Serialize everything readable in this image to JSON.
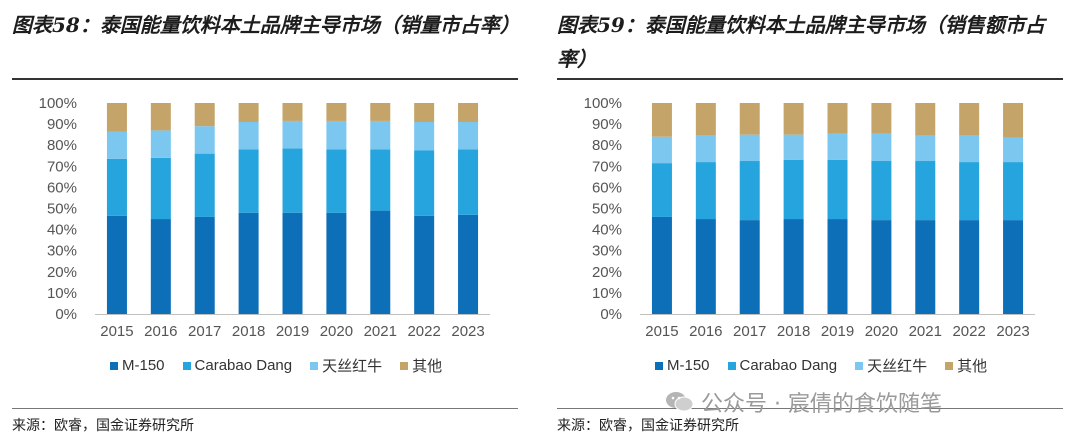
{
  "colors": {
    "m150": "#0d6fb8",
    "carabao": "#25a4dd",
    "redbull": "#7cc7f0",
    "other": "#c5a46a"
  },
  "left": {
    "title": "图表58：泰国能量饮料本土品牌主导市场（销量市占率）",
    "source": "来源：欧睿，国金证券研究所"
  },
  "right": {
    "title": "图表59：泰国能量饮料本土品牌主导市场（销售额市占率）",
    "source": "来源：欧睿，国金证券研究所"
  },
  "watermark": {
    "text": "公众号 · 宸倩的食饮随笔",
    "icon": "wechat-icon"
  },
  "chart_data": [
    {
      "type": "bar",
      "stacked": true,
      "categories": [
        "2015",
        "2016",
        "2017",
        "2018",
        "2019",
        "2020",
        "2021",
        "2022",
        "2023"
      ],
      "yticks": [
        "0%",
        "10%",
        "20%",
        "30%",
        "40%",
        "50%",
        "60%",
        "70%",
        "80%",
        "90%",
        "100%"
      ],
      "ylim": [
        0,
        100
      ],
      "series": [
        {
          "name": "M-150",
          "values": [
            46.5,
            45,
            46,
            48,
            48,
            48,
            49,
            46.5,
            47
          ]
        },
        {
          "name": "Carabao Dang",
          "values": [
            27,
            29,
            30,
            30,
            30.5,
            30,
            29,
            31,
            31
          ]
        },
        {
          "name": "天丝红牛",
          "values": [
            13,
            13,
            13,
            13,
            13,
            13.5,
            13.5,
            13.5,
            13
          ]
        },
        {
          "name": "其他",
          "values": [
            13.5,
            13,
            11,
            9,
            8.5,
            8.5,
            8.5,
            9,
            9
          ]
        }
      ],
      "legend": "bottom"
    },
    {
      "type": "bar",
      "stacked": true,
      "categories": [
        "2015",
        "2016",
        "2017",
        "2018",
        "2019",
        "2020",
        "2021",
        "2022",
        "2023"
      ],
      "yticks": [
        "0%",
        "10%",
        "20%",
        "30%",
        "40%",
        "50%",
        "60%",
        "70%",
        "80%",
        "90%",
        "100%"
      ],
      "ylim": [
        0,
        100
      ],
      "series": [
        {
          "name": "M-150",
          "values": [
            46,
            45,
            44.5,
            45,
            45,
            44.5,
            44.5,
            44.5,
            44.5
          ]
        },
        {
          "name": "Carabao Dang",
          "values": [
            25.5,
            27,
            28,
            28,
            28,
            28,
            28,
            27.5,
            27.5
          ]
        },
        {
          "name": "天丝红牛",
          "values": [
            12.5,
            12.5,
            12.5,
            12,
            12.5,
            13,
            12,
            12.5,
            11.5
          ]
        },
        {
          "name": "其他",
          "values": [
            16,
            15.5,
            15,
            15,
            14.5,
            14.5,
            15.5,
            15.5,
            16.5
          ]
        }
      ],
      "legend": "bottom"
    }
  ]
}
